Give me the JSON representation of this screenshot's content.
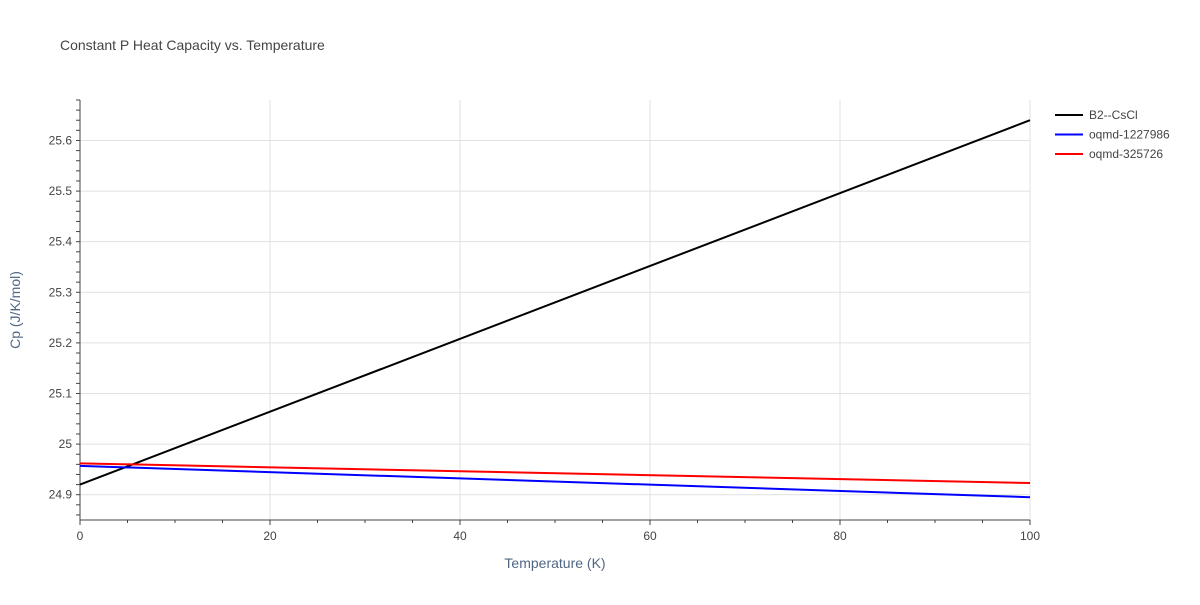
{
  "chart_data": {
    "type": "line",
    "title": "Constant P Heat Capacity vs. Temperature",
    "xlabel": "Temperature (K)",
    "ylabel": "Cp (J/K/mol)",
    "xlim": [
      0,
      100
    ],
    "ylim": [
      24.85,
      25.68
    ],
    "x_ticks": [
      0,
      20,
      40,
      60,
      80,
      100
    ],
    "y_ticks": [
      24.9,
      25,
      25.1,
      25.2,
      25.3,
      25.4,
      25.5,
      25.6
    ],
    "y_tick_labels": [
      "24.9",
      "25",
      "25.1",
      "25.2",
      "25.3",
      "25.4",
      "25.5",
      "25.6"
    ],
    "grid": true,
    "legend_position": "top-right",
    "series": [
      {
        "name": "B2--CsCl",
        "color": "#000000",
        "x": [
          0,
          100
        ],
        "y": [
          24.92,
          25.64
        ]
      },
      {
        "name": "oqmd-1227986",
        "color": "#0000ff",
        "x": [
          0,
          100
        ],
        "y": [
          24.957,
          24.895
        ]
      },
      {
        "name": "oqmd-325726",
        "color": "#ff0000",
        "x": [
          0,
          100
        ],
        "y": [
          24.962,
          24.923
        ]
      }
    ]
  }
}
